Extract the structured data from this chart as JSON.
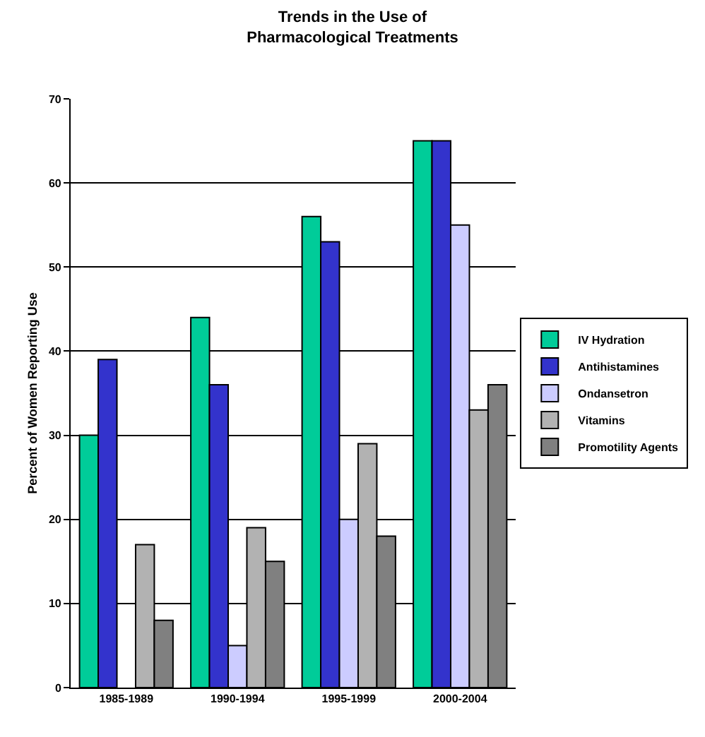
{
  "chart_data": {
    "type": "bar",
    "title": "Trends in the Use of\nPharmacological Treatments",
    "ylabel": "Percent of Women Reporting Use",
    "categories": [
      "1985-1989",
      "1990-1994",
      "1995-1999",
      "2000-2004"
    ],
    "series": [
      {
        "name": "IV Hydration",
        "color": "#00cc99",
        "values": [
          30,
          44,
          56,
          65
        ]
      },
      {
        "name": "Antihistamines",
        "color": "#3333cc",
        "values": [
          39,
          36,
          53,
          65
        ]
      },
      {
        "name": "Ondansetron",
        "color": "#ccccff",
        "values": [
          null,
          5,
          20,
          55
        ]
      },
      {
        "name": "Vitamins",
        "color": "#b2b2b2",
        "values": [
          17,
          19,
          29,
          33
        ]
      },
      {
        "name": "Promotility Agents",
        "color": "#808080",
        "values": [
          8,
          15,
          18,
          36
        ]
      }
    ],
    "ylim": [
      0,
      70
    ],
    "yticks": [
      0,
      10,
      20,
      30,
      40,
      50,
      60,
      70
    ],
    "grid": "y",
    "legend": "right"
  }
}
